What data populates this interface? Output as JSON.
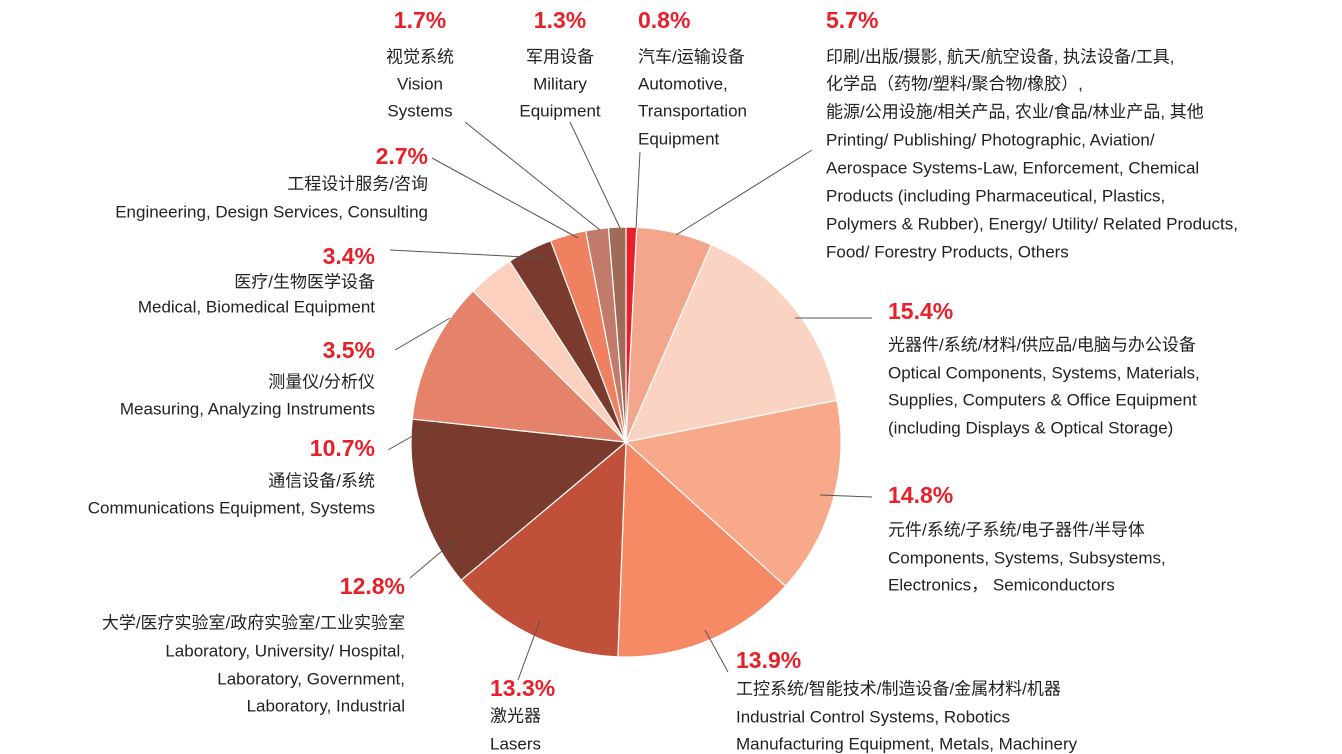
{
  "chart_data": {
    "type": "pie",
    "values": [
      0.8,
      5.7,
      15.4,
      14.8,
      13.9,
      13.3,
      12.8,
      10.7,
      3.5,
      3.4,
      2.7,
      1.7,
      1.3
    ],
    "value_labels": [
      "0.8%",
      "5.7%",
      "15.4%",
      "14.8%",
      "13.9%",
      "13.3%",
      "12.8%",
      "10.7%",
      "3.5%",
      "3.4%",
      "2.7%",
      "1.7%",
      "1.3%"
    ],
    "colors": [
      "#e8202a",
      "#f4a68c",
      "#fbd3c2",
      "#f8a98a",
      "#f58a65",
      "#c0503a",
      "#7a3a2e",
      "#e5826a",
      "#fcd0bf",
      "#7a3a2e",
      "#ef8060",
      "#c27a6a",
      "#a06a58"
    ],
    "labels": [
      [
        "汽车/运输设备",
        "Automotive,",
        "Transportation",
        "Equipment"
      ],
      [
        "印刷/出版/摄影, 航天/航空设备, 执法设备/工具,",
        "化学品（药物/塑料/聚合物/橡胶）,",
        "能源/公用设施/相关产品, 农业/食品/林业产品, 其他",
        "Printing/ Publishing/ Photographic, Aviation/",
        "Aerospace Systems-Law, Enforcement, Chemical",
        "Products (including Pharmaceutical, Plastics,",
        "Polymers & Rubber), Energy/ Utility/ Related Products,",
        "Food/ Forestry Products, Others"
      ],
      [
        "光器件/系统/材料/供应品/电脑与办公设备",
        "Optical Components, Systems, Materials,",
        "Supplies, Computers & Office Equipment",
        "(including Displays & Optical Storage)"
      ],
      [
        "元件/系统/子系统/电子器件/半导体",
        "Components, Systems, Subsystems,",
        "Electronics， Semiconductors"
      ],
      [
        "工控系统/智能技术/制造设备/金属材料/机器",
        "Industrial Control Systems, Robotics",
        "Manufacturing Equipment, Metals, Machinery"
      ],
      [
        "激光器",
        "Lasers"
      ],
      [
        "大学/医疗实验室/政府实验室/工业实验室",
        "Laboratory, University/ Hospital,",
        "Laboratory, Government,",
        "Laboratory, Industrial"
      ],
      [
        "通信设备/系统",
        "Communications Equipment, Systems"
      ],
      [
        "测量仪/分析仪",
        "Measuring, Analyzing Instruments"
      ],
      [
        "医疗/生物医学设备",
        "Medical, Biomedical Equipment"
      ],
      [
        "工程设计服务/咨询",
        "Engineering, Design Services, Consulting"
      ],
      [
        "视觉系统",
        "Vision",
        "Systems"
      ],
      [
        "军用设备",
        "Military",
        "Equipment"
      ]
    ]
  }
}
